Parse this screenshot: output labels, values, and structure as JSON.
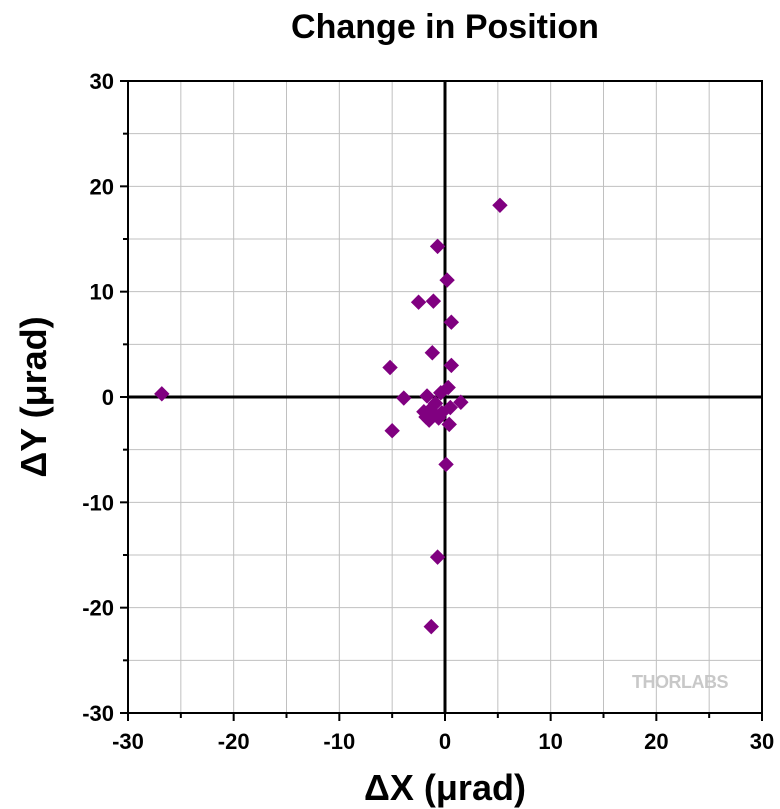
{
  "chart_data": {
    "type": "scatter",
    "title": "Change in Position",
    "xlabel": "ΔX (μrad)",
    "ylabel": "ΔY (μrad)",
    "xlim": [
      -30,
      30
    ],
    "ylim": [
      -30,
      30
    ],
    "x_ticks": [
      "-30",
      "-20",
      "-10",
      "0",
      "10",
      "20",
      "30"
    ],
    "y_ticks": [
      "30",
      "20",
      "10",
      "0",
      "-10",
      "-20",
      "-30"
    ],
    "grid": true,
    "marker_color": "#800080",
    "marker": "diamond",
    "points": [
      {
        "x": -26.8,
        "y": 0.3
      },
      {
        "x": 5.2,
        "y": 18.2
      },
      {
        "x": -0.7,
        "y": 14.3
      },
      {
        "x": 0.2,
        "y": 11.1
      },
      {
        "x": -2.5,
        "y": 9.0
      },
      {
        "x": -1.1,
        "y": 9.1
      },
      {
        "x": 0.6,
        "y": 7.1
      },
      {
        "x": -1.2,
        "y": 4.2
      },
      {
        "x": 0.6,
        "y": 3.0
      },
      {
        "x": -5.2,
        "y": 2.8
      },
      {
        "x": 0.3,
        "y": 0.9
      },
      {
        "x": -0.4,
        "y": 0.4
      },
      {
        "x": -1.7,
        "y": 0.1
      },
      {
        "x": -3.9,
        "y": -0.1
      },
      {
        "x": 1.5,
        "y": -0.5
      },
      {
        "x": -0.9,
        "y": -0.6
      },
      {
        "x": 0.5,
        "y": -1.0
      },
      {
        "x": -1.4,
        "y": -1.2
      },
      {
        "x": -2.0,
        "y": -1.4
      },
      {
        "x": -0.3,
        "y": -1.5
      },
      {
        "x": -1.0,
        "y": -1.7
      },
      {
        "x": -1.8,
        "y": -1.9
      },
      {
        "x": -0.6,
        "y": -2.0
      },
      {
        "x": -1.5,
        "y": -2.2
      },
      {
        "x": 0.4,
        "y": -2.6
      },
      {
        "x": -5.0,
        "y": -3.2
      },
      {
        "x": 0.1,
        "y": -6.4
      },
      {
        "x": -0.7,
        "y": -15.2
      },
      {
        "x": -1.3,
        "y": -21.8
      }
    ]
  },
  "watermark": "THORLABS",
  "colors": {
    "grid": "#c0c0c0",
    "axis": "#000000",
    "watermark": "#c8c8c8"
  }
}
